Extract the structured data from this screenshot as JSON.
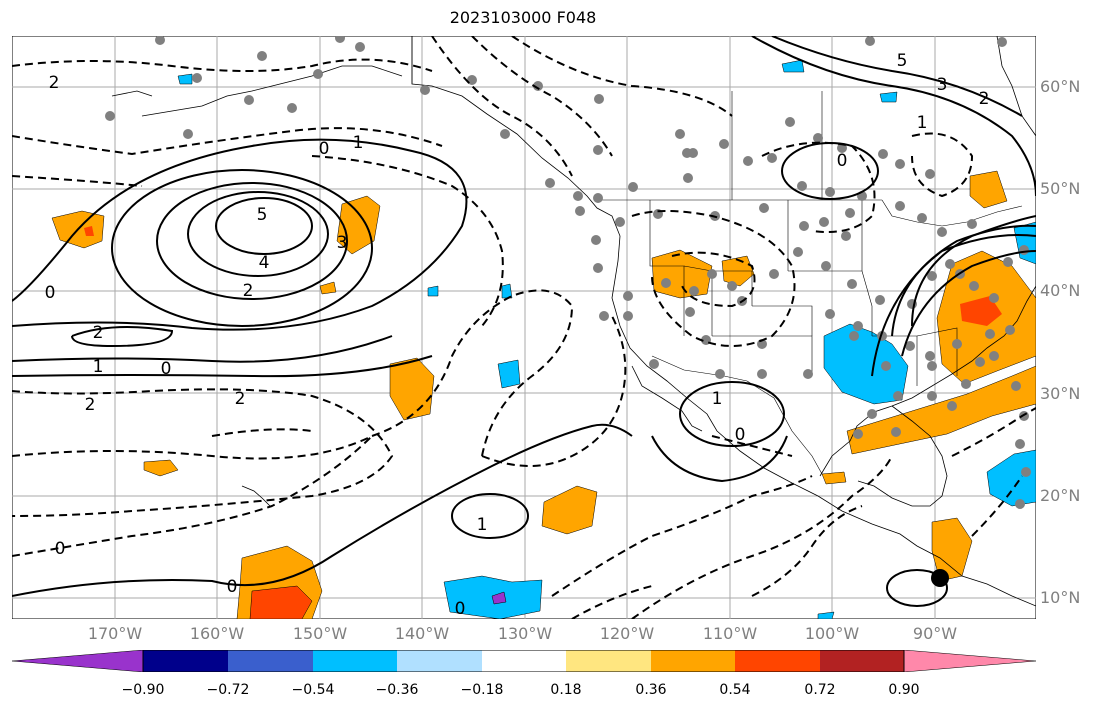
{
  "title": "2023103000 F048",
  "lat_labels": [
    "60°N",
    "50°N",
    "40°N",
    "30°N",
    "20°N",
    "10°N"
  ],
  "lon_labels": [
    "170°W",
    "160°W",
    "150°W",
    "140°W",
    "130°W",
    "120°W",
    "110°W",
    "100°W",
    "90°W"
  ],
  "colorbar": {
    "colors": [
      "#9933cc",
      "#00008b",
      "#3a5fcd",
      "#00bfff",
      "#b0e0ff",
      "#ffffff",
      "#ffe680",
      "#ffa500",
      "#ff4500",
      "#b22222",
      "#ff88aa"
    ],
    "tick_labels": [
      "−0.90",
      "−0.72",
      "−0.54",
      "−0.36",
      "−0.18",
      "0.18",
      "0.36",
      "0.54",
      "0.72",
      "0.90"
    ]
  },
  "contour_labels": {
    "five_pac": "5",
    "four_pac": "4",
    "two_pac": "2",
    "two_pac_b": "2",
    "zero_a": "0",
    "zero_b": "0",
    "zero_c": "0",
    "zero_d": "0",
    "one_a": "1",
    "two_neg_a": "2",
    "two_neg_b": "2",
    "two_neg_c": "2",
    "three_ne": "3",
    "one_mex": "1",
    "zero_mex": "0",
    "one_trop": "1",
    "zero_ctr": "0",
    "two_east": "2",
    "three_top": "3",
    "five_top": "5",
    "one_nw": "1",
    "zero_alaska": "0",
    "zero_sw": "0",
    "one_se": "1"
  }
}
